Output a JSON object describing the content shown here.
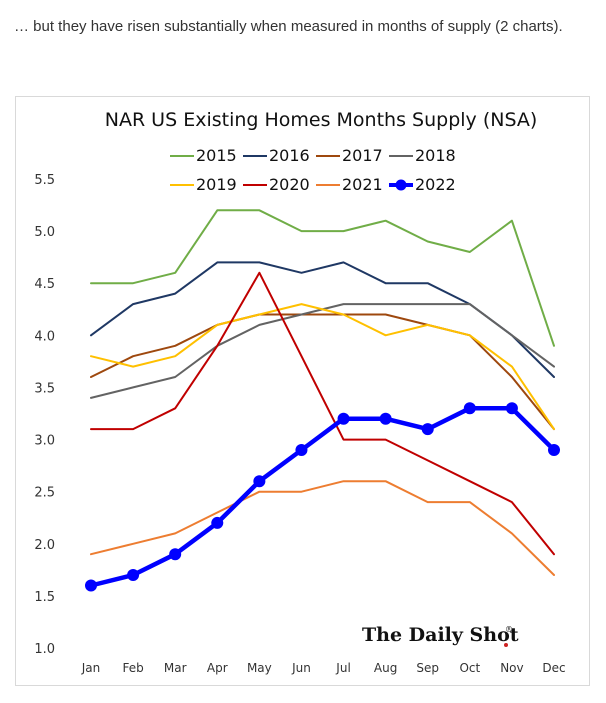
{
  "intro_text": "… but they have risen substantially when measured in months of supply (2 charts).",
  "brand": {
    "name": "The Daily Shot",
    "mark": "®",
    "dot_color": "#cc2222"
  },
  "chart_data": {
    "type": "line",
    "title": "NAR US Existing Homes Months Supply (NSA)",
    "categories": [
      "Jan",
      "Feb",
      "Mar",
      "Apr",
      "May",
      "Jun",
      "Jul",
      "Aug",
      "Sep",
      "Oct",
      "Nov",
      "Dec"
    ],
    "ylim": [
      1.0,
      5.5
    ],
    "yticks": [
      "1.0",
      "1.5",
      "2.0",
      "2.5",
      "3.0",
      "3.5",
      "4.0",
      "4.5",
      "5.0",
      "5.5"
    ],
    "grid": false,
    "legend_position": "top",
    "series": [
      {
        "name": "2015",
        "color": "#70ad47",
        "values": [
          4.5,
          4.5,
          4.6,
          5.2,
          5.2,
          5.0,
          5.0,
          5.1,
          4.9,
          4.8,
          5.1,
          3.9
        ]
      },
      {
        "name": "2016",
        "color": "#1f3864",
        "values": [
          4.0,
          4.3,
          4.4,
          4.7,
          4.7,
          4.6,
          4.7,
          4.5,
          4.5,
          4.3,
          4.0,
          3.6
        ]
      },
      {
        "name": "2017",
        "color": "#9e480e",
        "values": [
          3.6,
          3.8,
          3.9,
          4.1,
          4.2,
          4.2,
          4.2,
          4.2,
          4.1,
          4.0,
          3.6,
          3.1
        ]
      },
      {
        "name": "2018",
        "color": "#636363",
        "values": [
          3.4,
          3.5,
          3.6,
          3.9,
          4.1,
          4.2,
          4.3,
          4.3,
          4.3,
          4.3,
          4.0,
          3.7
        ]
      },
      {
        "name": "2019",
        "color": "#ffc000",
        "values": [
          3.8,
          3.7,
          3.8,
          4.1,
          4.2,
          4.3,
          4.2,
          4.0,
          4.1,
          4.0,
          3.7,
          3.1
        ]
      },
      {
        "name": "2020",
        "color": "#c00000",
        "values": [
          3.1,
          3.1,
          3.3,
          3.9,
          4.6,
          3.8,
          3.0,
          3.0,
          2.8,
          2.6,
          2.4,
          1.9
        ]
      },
      {
        "name": "2021",
        "color": "#ed7d31",
        "values": [
          1.9,
          2.0,
          2.1,
          2.3,
          2.5,
          2.5,
          2.6,
          2.6,
          2.4,
          2.4,
          2.1,
          1.7
        ]
      },
      {
        "name": "2022",
        "color": "#0000ff",
        "markers": true,
        "values": [
          1.6,
          1.7,
          1.9,
          2.2,
          2.6,
          2.9,
          3.2,
          3.2,
          3.1,
          3.3,
          3.3,
          2.9
        ]
      }
    ]
  }
}
